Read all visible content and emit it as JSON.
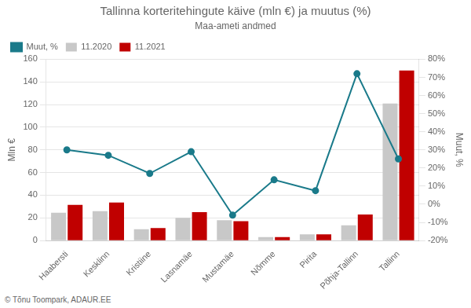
{
  "chart_data": {
    "type": "bar",
    "title": "Tallinna korteritehingute käive (mln €) ja muutus (%)",
    "subtitle": "Maa-ameti andmed",
    "ylabel": "Mln €",
    "y2label": "Muut, %",
    "annotations": [
      "© Tõnu Toompark, ADAUR.EE"
    ],
    "categories": [
      "Haabersti",
      "Kesklinn",
      "Kristiine",
      "Lasnamäe",
      "Mustamäe",
      "Nõmme",
      "Pirita",
      "Põhja-Tallinn",
      "Tallinn"
    ],
    "series": [
      {
        "name": "11.2020",
        "color": "#c8c8c8",
        "values": [
          24.5,
          26.0,
          10.0,
          20.0,
          18.0,
          3.0,
          5.5,
          13.5,
          121.0
        ]
      },
      {
        "name": "11.2021",
        "color": "#c00000",
        "values": [
          31.5,
          33.5,
          11.0,
          25.0,
          17.0,
          3.0,
          5.5,
          23.0,
          150.0
        ]
      },
      {
        "name": "Muut, %",
        "type": "line",
        "axis": "y2",
        "color": "#1a7a8a",
        "marker": "circle",
        "values": [
          30.0,
          27.0,
          17.0,
          29.0,
          -6.0,
          13.5,
          7.5,
          72.0,
          25.0
        ]
      }
    ],
    "ylim": [
      0,
      160
    ],
    "yticks": [
      0,
      20,
      40,
      60,
      80,
      100,
      120,
      140,
      160
    ],
    "y2lim": [
      -20,
      80
    ],
    "y2ticks": [
      {
        "value": -20,
        "label": "-20%"
      },
      {
        "value": -10,
        "label": "-10%"
      },
      {
        "value": 0,
        "label": "0%"
      },
      {
        "value": 10,
        "label": "10%"
      },
      {
        "value": 20,
        "label": "20%"
      },
      {
        "value": 30,
        "label": "30%"
      },
      {
        "value": 40,
        "label": "40%"
      },
      {
        "value": 50,
        "label": "50%"
      },
      {
        "value": 60,
        "label": "60%"
      },
      {
        "value": 70,
        "label": "70%"
      },
      {
        "value": 80,
        "label": "80%"
      }
    ],
    "grid": true,
    "legend": "upper left"
  }
}
